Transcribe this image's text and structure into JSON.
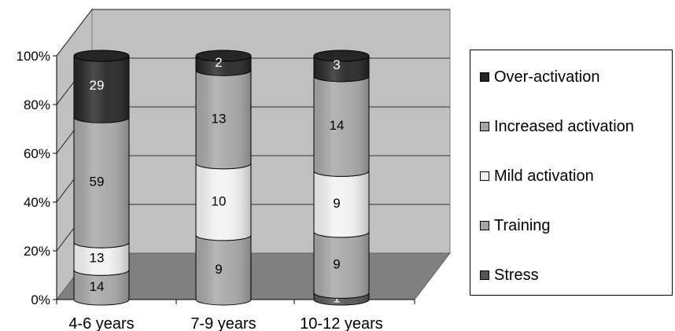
{
  "chart_data": {
    "type": "bar",
    "stacked": true,
    "stack_mode": "percent",
    "three_d": "cylinder",
    "title": "",
    "xlabel": "",
    "ylabel": "",
    "categories": [
      "4-6 years",
      "7-9 years",
      "10-12 years"
    ],
    "y_ticks": [
      "0%",
      "20%",
      "40%",
      "60%",
      "80%",
      "100%"
    ],
    "ylim": [
      0,
      100
    ],
    "grid": true,
    "legend_position": "right",
    "series": [
      {
        "name": "Stress",
        "color": "#555555",
        "values": [
          0,
          0,
          1
        ]
      },
      {
        "name": "Training",
        "color": "#a6a6a6",
        "values": [
          14,
          9,
          9
        ]
      },
      {
        "name": "Mild activation",
        "color": "#f2f2f2",
        "values": [
          13,
          10,
          9
        ]
      },
      {
        "name": "Increased activation",
        "color": "#a6a6a6",
        "values": [
          59,
          13,
          14
        ]
      },
      {
        "name": "Over-activation",
        "color": "#262626",
        "values": [
          29,
          2,
          3
        ]
      }
    ]
  }
}
